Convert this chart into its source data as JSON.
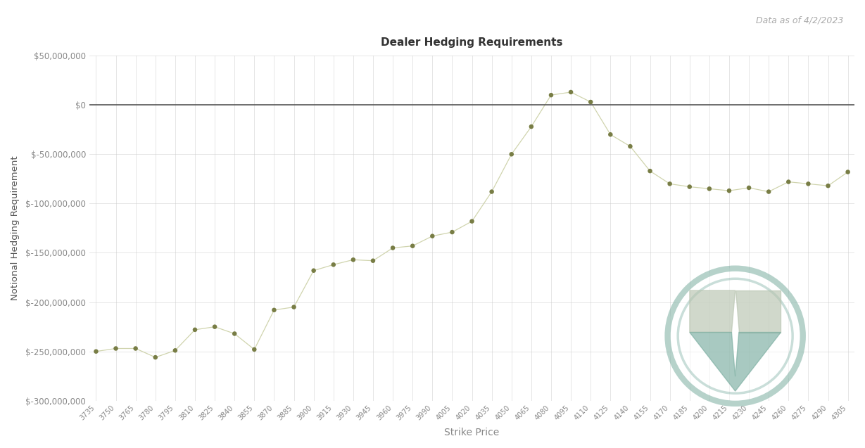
{
  "title": "Dealer Hedging Requirements",
  "subtitle": "Data as of 4/2/2023",
  "xlabel": "Strike Price",
  "ylabel": "Notional Hedging Requirement",
  "ylim": [
    -300000000,
    50000000
  ],
  "yticks": [
    50000000,
    0,
    -50000000,
    -100000000,
    -150000000,
    -200000000,
    -250000000,
    -300000000
  ],
  "line_color": "#787d45",
  "dot_color": "#787d45",
  "zero_line_color": "#555555",
  "background_color": "#ffffff",
  "grid_color": "#cccccc",
  "title_fontsize": 11,
  "subtitle_color": "#aaaaaa",
  "tick_color": "#888888",
  "ylabel_color": "#555555",
  "strikes": [
    3735,
    3750,
    3765,
    3780,
    3795,
    3810,
    3825,
    3840,
    3855,
    3870,
    3885,
    3900,
    3915,
    3930,
    3945,
    3960,
    3975,
    3990,
    4005,
    4020,
    4035,
    4050,
    4065,
    4080,
    4095,
    4110,
    4125,
    4140,
    4155,
    4170,
    4185,
    4200,
    4215,
    4230,
    4245,
    4260,
    4275,
    4290,
    4305
  ],
  "values": [
    -250000000,
    -247000000,
    -247000000,
    -256000000,
    -249000000,
    -228000000,
    -225000000,
    -232000000,
    -248000000,
    -208000000,
    -205000000,
    -168000000,
    -162000000,
    -157000000,
    -158000000,
    -145000000,
    -143000000,
    -133000000,
    -129000000,
    -118000000,
    -88000000,
    -50000000,
    -22000000,
    10000000,
    13000000,
    3000000,
    -30000000,
    -42000000,
    -67000000,
    -80000000,
    -83000000,
    -85000000,
    -87000000,
    -84000000,
    -88000000,
    -78000000,
    -80000000,
    -82000000,
    -68000000
  ],
  "xtick_labels": [
    "3735",
    "3750",
    "3765",
    "3780",
    "3795",
    "3810",
    "3825",
    "3840",
    "3855",
    "3870",
    "3885",
    "3900",
    "3915",
    "3930",
    "3945",
    "3960",
    "3975",
    "3990",
    "4005",
    "4020",
    "4035",
    "4050",
    "4065",
    "4080",
    "4095",
    "4110",
    "4125",
    "4140",
    "4155",
    "4170",
    "4185",
    "4200",
    "4215",
    "4230",
    "4245",
    "4260",
    "4275",
    "4290",
    "4305"
  ],
  "logo_outer_color": "#7aada0",
  "logo_inner_top_color": "#b8c4b0",
  "logo_inner_bottom_color": "#7aada0",
  "logo_alpha": 0.7
}
